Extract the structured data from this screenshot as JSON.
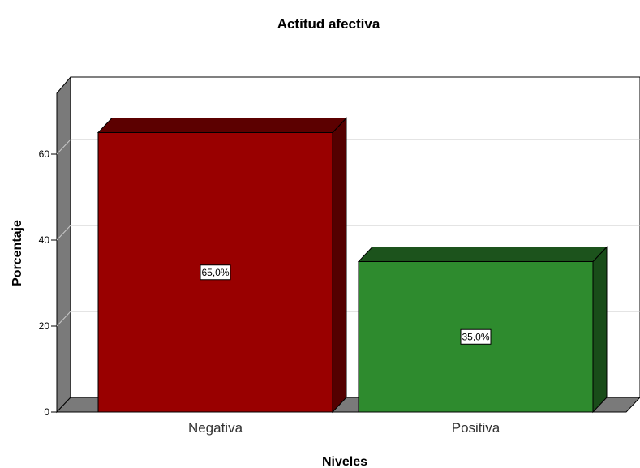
{
  "chart_data": {
    "type": "bar",
    "title": "Actitud afectiva",
    "xlabel": "Niveles",
    "ylabel": "Porcentaje",
    "categories": [
      "Negativa",
      "Positiva"
    ],
    "values": [
      65.0,
      35.0
    ],
    "data_labels": [
      "65,0%",
      "35,0%"
    ],
    "bar_colors": [
      "#990000",
      "#2e8b2e"
    ],
    "yticks": [
      0,
      20,
      40,
      60
    ],
    "ylim": [
      0,
      75
    ],
    "grid": true,
    "legend": false,
    "style": "3d"
  }
}
